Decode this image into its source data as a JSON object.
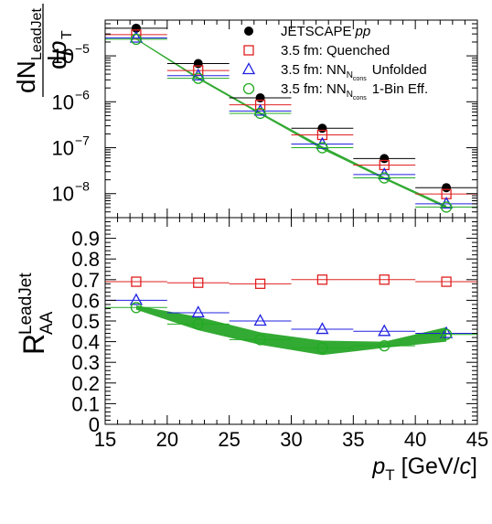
{
  "chart_data": [
    {
      "type": "scatter",
      "panel": "spectrum",
      "ylabel_parts": {
        "d": "dN",
        "sub": "LeadJet",
        "den_d": "d",
        "den_p": "p",
        "den_sub": "T"
      },
      "yscale": "log",
      "ylim": [
        3e-09,
        6e-05
      ],
      "xlim": [
        15,
        45
      ],
      "ytick_labels": [
        {
          "value": 1e-05,
          "mant": "10",
          "exp": "−5"
        },
        {
          "value": 1e-06,
          "mant": "10",
          "exp": "−6"
        },
        {
          "value": 1e-07,
          "mant": "10",
          "exp": "−7"
        },
        {
          "value": 1e-08,
          "mant": "10",
          "exp": "−8"
        }
      ],
      "bin_edges": [
        15,
        20,
        25,
        30,
        35,
        40,
        45
      ],
      "x": [
        17.5,
        22.5,
        27.5,
        32.5,
        37.5,
        42.5
      ],
      "band": {
        "name": "1-Bin Eff. band",
        "color": "#33aa33",
        "low": [
          2.25e-05,
          3.1e-06,
          5.3e-07,
          9.2e-08,
          2.05e-08,
          4.8e-09
        ],
        "high": [
          2.4e-05,
          3.45e-06,
          5.9e-07,
          1.07e-07,
          2.3e-08,
          5.5e-09
        ]
      },
      "series": [
        {
          "name": "JETSCAPE",
          "name_italic": "pp",
          "marker": "filled-circle",
          "color": "#000000",
          "values": [
            4e-05,
            6.8e-06,
            1.22e-06,
            2.65e-07,
            5.8e-08,
            1.35e-08
          ]
        },
        {
          "name": "3.5 fm: Quenched",
          "marker": "open-square",
          "color": "#e02020",
          "values": [
            2.9e-05,
            4.8e-06,
            8.6e-07,
            1.9e-07,
            4.2e-08,
            9.8e-09
          ]
        },
        {
          "name": "3.5 fm: NN",
          "sub": "N",
          "subsub": "cons",
          "suffix": "Unfolded",
          "marker": "open-triangle",
          "color": "#2020e0",
          "values": [
            2.45e-05,
            3.7e-06,
            6.3e-07,
            1.2e-07,
            2.6e-08,
            6e-09
          ]
        },
        {
          "name": "3.5 fm: NN",
          "sub": "N",
          "subsub": "cons",
          "suffix": "1-Bin Eff.",
          "marker": "open-circle",
          "color": "#22aa22",
          "values": [
            2.3e-05,
            3.25e-06,
            5.6e-07,
            1e-07,
            2.2e-08,
            5.1e-09
          ]
        }
      ]
    },
    {
      "type": "scatter",
      "panel": "raa",
      "ylabel_parts": {
        "R": "R",
        "sup": "LeadJet",
        "sub": "AA"
      },
      "ylim": [
        0,
        1.0
      ],
      "xlim": [
        15,
        45
      ],
      "yticks": [
        "0",
        "0.1",
        "0.2",
        "0.3",
        "0.4",
        "0.5",
        "0.6",
        "0.7",
        "0.8",
        "0.9"
      ],
      "xticks": [
        "15",
        "20",
        "25",
        "30",
        "35",
        "40",
        "45"
      ],
      "xlabel_parts": {
        "p": "p",
        "sub": "T",
        "unit_pre": " [GeV/",
        "unit_c": "c",
        "unit_post": "]"
      },
      "bin_edges": [
        15,
        20,
        25,
        30,
        35,
        40,
        45
      ],
      "x": [
        17.5,
        22.5,
        27.5,
        32.5,
        37.5,
        42.5
      ],
      "band": {
        "name": "1-Bin Eff. band",
        "color": "#33aa33",
        "low": [
          0.555,
          0.455,
          0.385,
          0.335,
          0.37,
          0.4
        ],
        "high": [
          0.575,
          0.52,
          0.445,
          0.405,
          0.4,
          0.47
        ]
      },
      "series": [
        {
          "name": "3.5 fm: Quenched",
          "marker": "open-square",
          "color": "#e02020",
          "values": [
            0.69,
            0.685,
            0.68,
            0.7,
            0.7,
            0.69
          ]
        },
        {
          "name": "3.5 fm: NN Unfolded",
          "marker": "open-triangle",
          "color": "#2020e0",
          "values": [
            0.6,
            0.54,
            0.5,
            0.46,
            0.45,
            0.44
          ]
        },
        {
          "name": "3.5 fm: NN 1-Bin Eff.",
          "marker": "open-circle",
          "color": "#22aa22",
          "values": [
            0.565,
            0.485,
            0.41,
            0.37,
            0.38,
            0.435
          ]
        }
      ]
    }
  ]
}
